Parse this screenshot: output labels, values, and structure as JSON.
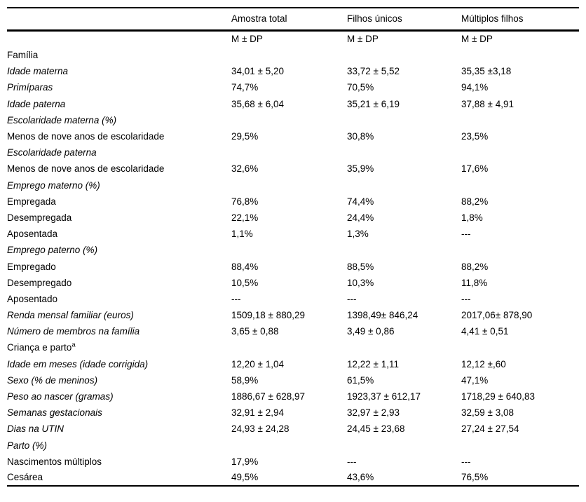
{
  "colors": {
    "text": "#000000",
    "background": "#ffffff",
    "rule": "#000000"
  },
  "table": {
    "columns": [
      "",
      "Amostra total",
      "Filhos únicos",
      "Múltiplos filhos"
    ],
    "subheader": [
      "M ± DP",
      "M ± DP",
      "M ± DP"
    ],
    "rows": [
      {
        "label": "Família",
        "style": "bold",
        "values": [
          "",
          "",
          ""
        ]
      },
      {
        "label": "Idade materna",
        "style": "italic",
        "values": [
          "34,01 ± 5,20",
          "33,72 ± 5,52",
          "35,35 ±3,18"
        ]
      },
      {
        "label": "Primíparas",
        "style": "italic",
        "values": [
          "74,7%",
          "70,5%",
          "94,1%"
        ]
      },
      {
        "label": "Idade paterna",
        "style": "italic",
        "values": [
          "35,68 ± 6,04",
          "35,21 ± 6,19",
          "37,88 ± 4,91"
        ]
      },
      {
        "label": "Escolaridade materna (%)",
        "style": "italic",
        "values": [
          "",
          "",
          ""
        ]
      },
      {
        "label": "Menos de nove anos de escolaridade",
        "style": "normal",
        "values": [
          "29,5%",
          "30,8%",
          "23,5%"
        ]
      },
      {
        "label": "Escolaridade paterna",
        "style": "italic",
        "values": [
          "",
          "",
          ""
        ]
      },
      {
        "label": "Menos de nove anos de escolaridade",
        "style": "normal",
        "values": [
          "32,6%",
          "35,9%",
          "17,6%"
        ]
      },
      {
        "label": "Emprego materno (%)",
        "style": "italic",
        "values": [
          "",
          "",
          ""
        ]
      },
      {
        "label": "Empregada",
        "style": "normal",
        "values": [
          "76,8%",
          "74,4%",
          "88,2%"
        ]
      },
      {
        "label": "Desempregada",
        "style": "normal",
        "values": [
          "22,1%",
          "24,4%",
          "1,8%"
        ]
      },
      {
        "label": "Aposentada",
        "style": "normal",
        "values": [
          "1,1%",
          "1,3%",
          "---"
        ]
      },
      {
        "label": "Emprego paterno (%)",
        "style": "italic",
        "values": [
          "",
          "",
          ""
        ]
      },
      {
        "label": "Empregado",
        "style": "normal",
        "values": [
          "88,4%",
          "88,5%",
          "88,2%"
        ]
      },
      {
        "label": "Desempregado",
        "style": "normal",
        "values": [
          "10,5%",
          "10,3%",
          "11,8%"
        ]
      },
      {
        "label": "Aposentado",
        "style": "normal",
        "values": [
          "---",
          "---",
          "---"
        ]
      },
      {
        "label": "Renda mensal familiar (euros)",
        "style": "italic",
        "values": [
          "1509,18 ± 880,29",
          "1398,49± 846,24",
          "2017,06± 878,90"
        ]
      },
      {
        "label": "Número de membros na família",
        "style": "italic",
        "values": [
          "3,65 ± 0,88",
          "3,49 ± 0,86",
          "4,41 ± 0,51"
        ]
      },
      {
        "label": "Criança e parto",
        "style": "bold",
        "sup": "a",
        "values": [
          "",
          "",
          ""
        ]
      },
      {
        "label": "Idade em meses (idade corrigida)",
        "style": "italic",
        "values": [
          "12,20 ± 1,04",
          "12,22 ± 1,11",
          "12,12 ±,60"
        ]
      },
      {
        "label": "Sexo (% de meninos)",
        "style": "italic",
        "values": [
          "58,9%",
          "61,5%",
          "47,1%"
        ]
      },
      {
        "label": "Peso ao nascer (gramas)",
        "style": "italic",
        "values": [
          "1886,67 ± 628,97",
          "1923,37 ± 612,17",
          "1718,29 ± 640,83"
        ]
      },
      {
        "label": "Semanas gestacionais",
        "style": "italic",
        "values": [
          "32,91 ± 2,94",
          "32,97 ± 2,93",
          "32,59 ± 3,08"
        ]
      },
      {
        "label": "Dias na UTIN",
        "style": "italic",
        "values": [
          "24,93 ± 24,28",
          "24,45 ± 23,68",
          "27,24 ± 27,54"
        ]
      },
      {
        "label": "Parto (%)",
        "style": "italic",
        "values": [
          "",
          "",
          ""
        ]
      },
      {
        "label": "Nascimentos múltiplos",
        "style": "normal",
        "values": [
          "17,9%",
          "---",
          "---"
        ]
      },
      {
        "label": "Cesárea",
        "style": "normal",
        "values": [
          "49,5%",
          "43,6%",
          "76,5%"
        ]
      }
    ]
  }
}
